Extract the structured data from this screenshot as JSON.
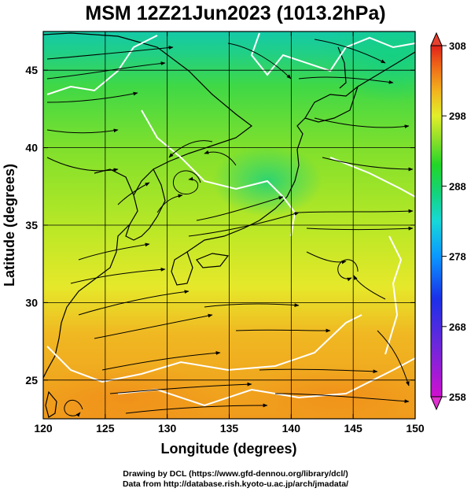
{
  "title": "MSM 12Z21Jun2023 (1013.2hPa)",
  "map": {
    "x_axis": {
      "label": "Longitude (degrees)",
      "range": [
        120,
        150
      ],
      "ticks": [
        120,
        125,
        130,
        135,
        140,
        145,
        150
      ]
    },
    "y_axis": {
      "label": "Latitude  (degrees)",
      "range": [
        22.5,
        47.5
      ],
      "ticks": [
        25,
        30,
        35,
        40,
        45
      ]
    },
    "grid": true,
    "field": "temperature (K) shaded, streamlines of wind",
    "notable_features": [
      {
        "name": "cyclonic circulation",
        "lon": 130.8,
        "lat": 39.0
      },
      {
        "name": "cyclonic circulation",
        "lon": 144.0,
        "lat": 33.0
      },
      {
        "name": "anticyclonic circulation",
        "lon": 122.5,
        "lat": 23.5
      }
    ]
  },
  "colorbar": {
    "ticks": [
      258,
      268,
      278,
      288,
      298,
      308
    ],
    "range": [
      258,
      308
    ],
    "colors": [
      "#d10fd3",
      "#7a22d9",
      "#1a2fe6",
      "#0a8cff",
      "#13d6e6",
      "#10d68a",
      "#22d62a",
      "#88e02a",
      "#dff02a",
      "#f2b71e",
      "#f07018",
      "#e02a1a"
    ]
  },
  "credits": {
    "line1": "Drawing by DCL (https://www.gfd-dennou.org/library/dcl/)",
    "line2": "Data from http://database.rish.kyoto-u.ac.jp/arch/jmadata/"
  }
}
